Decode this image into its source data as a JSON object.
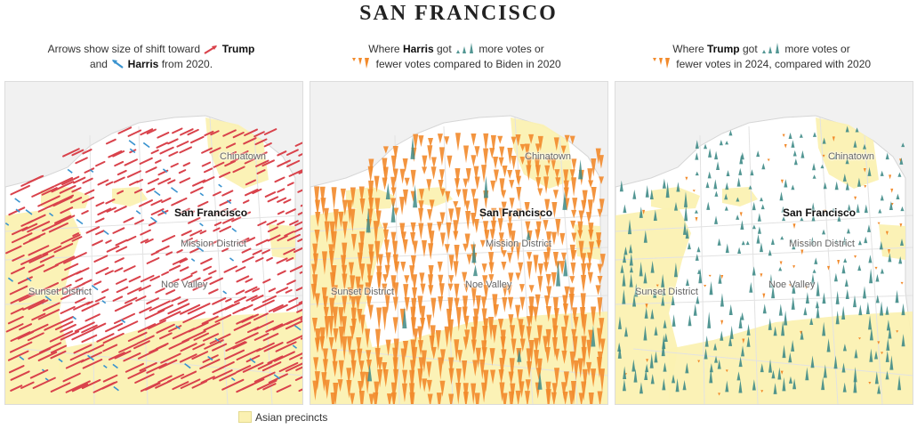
{
  "title": "SAN FRANCISCO",
  "panels": [
    {
      "caption_line1_pre": "Arrows show size of shift toward",
      "caption_line1_bold": "Trump",
      "caption_line2_pre": "and",
      "caption_line2_bold": "Harris",
      "caption_line2_post": "from 2020.",
      "mark": "arrow",
      "labels": {
        "city": "San Francisco",
        "chinatown": "Chinatown",
        "mission": "Mission District",
        "sunset": "Sunset District",
        "noe": "Noe Valley"
      }
    },
    {
      "caption_line1_pre": "Where",
      "caption_line1_bold": "Harris",
      "caption_line1_mid": "got",
      "caption_line1_post": "more votes or",
      "caption_line2_post": "fewer votes compared to Biden in 2020",
      "mark": "spike-harris",
      "labels": {
        "city": "San Francisco",
        "chinatown": "Chinatown",
        "mission": "Mission District",
        "sunset": "Sunset District",
        "noe": "Noe Valley"
      }
    },
    {
      "caption_line1_pre": "Where",
      "caption_line1_bold": "Trump",
      "caption_line1_mid": "got",
      "caption_line1_post": "more votes or",
      "caption_line2_post": "fewer votes in 2024, compared with 2020",
      "mark": "spike-trump",
      "labels": {
        "city": "San Francisco",
        "chinatown": "Chinatown",
        "mission": "Mission District",
        "sunset": "Sunset District",
        "noe": "Noe Valley"
      }
    }
  ],
  "legend": {
    "label": "Asian precincts"
  },
  "colors": {
    "trump_arrow": "#d9424b",
    "harris_arrow": "#3a93cf",
    "more_votes": "#3f8b87",
    "fewer_votes": "#f28a2b",
    "asian_precincts": "#fbf1b2",
    "land": "#f1f1f1",
    "city_area": "#ffffff"
  }
}
